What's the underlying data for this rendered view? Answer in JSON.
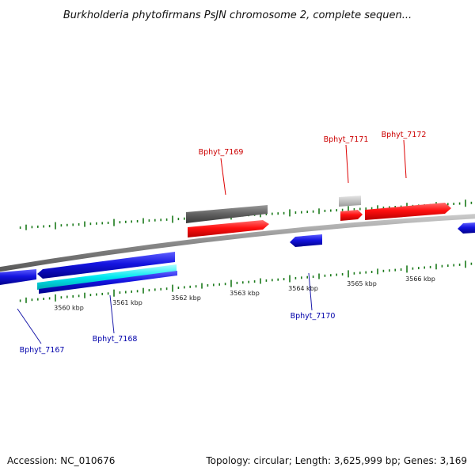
{
  "title": "Burkholderia phytofirmans PsJN chromosome 2, complete sequen...",
  "footer": {
    "accession": "Accession: NC_010676",
    "topology": "Topology: circular; Length: 3,625,999 bp; Genes: 3,169"
  },
  "ticks": {
    "minor_step_kbp": 0.1,
    "major_step_kbp": 1,
    "start_kbp": 3559.4,
    "end_kbp": 3567.6,
    "labels": [
      "3560 kbp",
      "3561 kbp",
      "3562 kbp",
      "3563 kbp",
      "3564 kbp",
      "3565 kbp",
      "3566 kbp"
    ]
  },
  "genes": [
    {
      "name": "Bphyt_7167",
      "strand": "minus",
      "color": "#0000c8"
    },
    {
      "name": "Bphyt_7168",
      "strand": "minus",
      "color": "#0000c8"
    },
    {
      "name": "Bphyt_7169",
      "strand": "plus",
      "color": "#ee0000"
    },
    {
      "name": "Bphyt_7170",
      "strand": "minus",
      "color": "#0000c8"
    },
    {
      "name": "Bphyt_7171",
      "strand": "plus",
      "color": "#ee0000"
    },
    {
      "name": "Bphyt_7172",
      "strand": "plus",
      "color": "#ee0000"
    }
  ],
  "colors": {
    "plus_strand": "#ee0000",
    "minus_strand": "#0000c8",
    "ticks": "#1a7a1a",
    "backbone": "#888888",
    "feature_dark": "#5a5a5a",
    "feature_light": "#bdbdbd",
    "feature_cyan": "#00e0e8"
  }
}
